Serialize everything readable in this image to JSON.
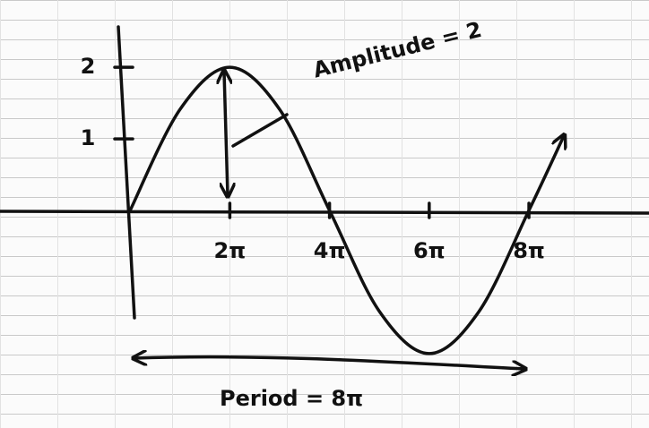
{
  "chart_data": {
    "type": "line",
    "x": [
      0,
      3.1416,
      6.2832,
      9.4248,
      12.5664,
      15.708,
      18.8496,
      21.9911,
      25.1327,
      27.33
    ],
    "series": [
      {
        "color": "#111111",
        "values": [
          0,
          1.41,
          2,
          1.41,
          0,
          -1.41,
          -2,
          -1.41,
          0,
          1.04
        ]
      }
    ],
    "xlim": [
      -8.2,
      32.7
    ],
    "ylim": [
      -3.04,
      2.94
    ],
    "xticks": [
      {
        "value": 6.2832,
        "label": "2π"
      },
      {
        "value": 12.5664,
        "label": "4π"
      },
      {
        "value": 18.8496,
        "label": "6π"
      },
      {
        "value": 25.1327,
        "label": "8π"
      }
    ],
    "yticks": [
      1,
      2
    ],
    "annotations": [
      "Amplitude = 2",
      "Period = 8π"
    ]
  }
}
